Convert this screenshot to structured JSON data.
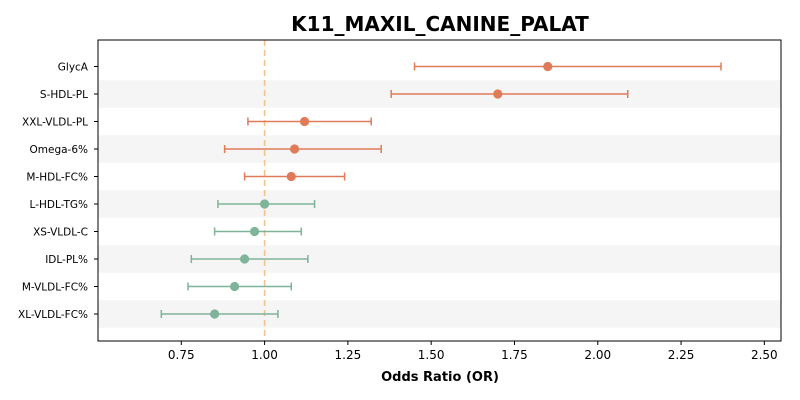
{
  "chart_data": {
    "type": "forest",
    "title": "K11_MAXIL_CANINE_PALAT",
    "xlabel": "Odds Ratio (OR)",
    "ylabel": "",
    "xlim": [
      0.5,
      2.55
    ],
    "xticks": [
      "0.75",
      "1.00",
      "1.25",
      "1.50",
      "1.75",
      "2.00",
      "2.25",
      "2.50"
    ],
    "reference_line": 1.0,
    "colors": {
      "increased": "#e07b5a",
      "decreased": "#7fb39a",
      "reference": "#f2c48d",
      "band": "#f5f5f5"
    },
    "rows": [
      {
        "label": "GlycA",
        "or": 1.85,
        "lo": 1.45,
        "hi": 2.37
      },
      {
        "label": "S-HDL-PL",
        "or": 1.7,
        "lo": 1.38,
        "hi": 2.09
      },
      {
        "label": "XXL-VLDL-PL",
        "or": 1.12,
        "lo": 0.95,
        "hi": 1.32
      },
      {
        "label": "Omega-6%",
        "or": 1.09,
        "lo": 0.88,
        "hi": 1.35
      },
      {
        "label": "M-HDL-FC%",
        "or": 1.08,
        "lo": 0.94,
        "hi": 1.24
      },
      {
        "label": "L-HDL-TG%",
        "or": 1.0,
        "lo": 0.86,
        "hi": 1.15
      },
      {
        "label": "XS-VLDL-C",
        "or": 0.97,
        "lo": 0.85,
        "hi": 1.11
      },
      {
        "label": "IDL-PL%",
        "or": 0.94,
        "lo": 0.78,
        "hi": 1.13
      },
      {
        "label": "M-VLDL-FC%",
        "or": 0.91,
        "lo": 0.77,
        "hi": 1.08
      },
      {
        "label": "XL-VLDL-FC%",
        "or": 0.85,
        "lo": 0.69,
        "hi": 1.04
      }
    ]
  }
}
